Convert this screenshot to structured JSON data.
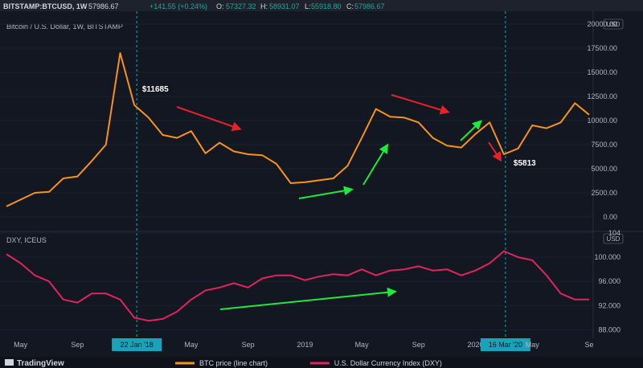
{
  "header": {
    "symbol": "BITSTAMP:BTCUSD, 1W",
    "last": "57986.67",
    "change": "+141.55 (+0.24%)",
    "o_label": "O:",
    "o_value": "57327.32",
    "h_label": "H:",
    "h_value": "58931.07",
    "l_label": "L:",
    "l_value": "55918.80",
    "c_label": "C:",
    "c_value": "57986.67"
  },
  "colors": {
    "background": "#131722",
    "btc_line": "#f7931a",
    "dxy_line": "#e0245e",
    "red_arrow": "#e8202a",
    "green_arrow": "#21e83a",
    "marker_line": "#26c6da",
    "text": "#b2b5be"
  },
  "footer": {
    "logo": "TradingView",
    "legend": [
      {
        "label": "BTC price (line chart)",
        "color": "#f7931a"
      },
      {
        "label": "U.S. Dollar Currency Index (DXY)",
        "color": "#e0245e"
      }
    ]
  },
  "chart_data": [
    {
      "type": "line",
      "title": "Bitcoin / U.S. Dollar, 1W, BITSTAMP",
      "unit_badge": "USD",
      "ylim": [
        -1000,
        20000
      ],
      "y_ticks": [
        "0.00",
        "2500.00",
        "5000.00",
        "7500.00",
        "10000.00",
        "12500.00",
        "15000.00",
        "17500.00",
        "20000.00"
      ],
      "x_ticks": [
        "May",
        "Sep",
        "22 Jan '18",
        "May",
        "Sep",
        "2019",
        "May",
        "Sep",
        "2020",
        "16 Mar '20",
        "May",
        "Se"
      ],
      "x": [
        "2017-04",
        "2017-05",
        "2017-06",
        "2017-07",
        "2017-08",
        "2017-09",
        "2017-10",
        "2017-11",
        "2017-12",
        "2018-01",
        "2018-02",
        "2018-03",
        "2018-04",
        "2018-05",
        "2018-06",
        "2018-07",
        "2018-08",
        "2018-09",
        "2018-10",
        "2018-11",
        "2018-12",
        "2019-01",
        "2019-02",
        "2019-03",
        "2019-04",
        "2019-05",
        "2019-06",
        "2019-07",
        "2019-08",
        "2019-09",
        "2019-10",
        "2019-11",
        "2019-12",
        "2020-01",
        "2020-02",
        "2020-03",
        "2020-04",
        "2020-05",
        "2020-06",
        "2020-07",
        "2020-08",
        "2020-09"
      ],
      "series": [
        {
          "values": [
            1100,
            1800,
            2500,
            2600,
            4000,
            4200,
            5800,
            7500,
            17000,
            11600,
            10300,
            8500,
            8200,
            8900,
            6600,
            7700,
            6800,
            6500,
            6400,
            5500,
            3500,
            3600,
            3800,
            4000,
            5300,
            8200,
            11200,
            10400,
            10300,
            9800,
            8200,
            7400,
            7200,
            8600,
            9800,
            6500,
            7100,
            9500,
            9200,
            9800,
            11800,
            10600
          ]
        }
      ],
      "annotations": [
        {
          "text": "$11685",
          "x": "2018-02",
          "y": 11685
        },
        {
          "text": "$5813",
          "x": "2020-03",
          "y": 5813
        }
      ]
    },
    {
      "type": "line",
      "title": "DXY, ICEUS",
      "unit_badge": "USD",
      "ylim": [
        87,
        104
      ],
      "y_ticks": [
        "88.000",
        "92.000",
        "96.000",
        "100.000",
        "104"
      ],
      "x": [
        "2017-04",
        "2017-05",
        "2017-06",
        "2017-07",
        "2017-08",
        "2017-09",
        "2017-10",
        "2017-11",
        "2017-12",
        "2018-01",
        "2018-02",
        "2018-03",
        "2018-04",
        "2018-05",
        "2018-06",
        "2018-07",
        "2018-08",
        "2018-09",
        "2018-10",
        "2018-11",
        "2018-12",
        "2019-01",
        "2019-02",
        "2019-03",
        "2019-04",
        "2019-05",
        "2019-06",
        "2019-07",
        "2019-08",
        "2019-09",
        "2019-10",
        "2019-11",
        "2019-12",
        "2020-01",
        "2020-02",
        "2020-03",
        "2020-04",
        "2020-05",
        "2020-06",
        "2020-07",
        "2020-08",
        "2020-09"
      ],
      "series": [
        {
          "values": [
            100.5,
            99,
            97,
            96,
            93,
            92.5,
            94,
            94,
            93,
            90,
            89.5,
            89.8,
            91,
            93,
            94.5,
            95,
            95.7,
            95,
            96.5,
            97,
            97,
            96.2,
            96.8,
            97.2,
            97,
            98,
            97,
            97.8,
            98,
            98.5,
            97.8,
            98,
            97,
            97.8,
            99,
            101,
            100,
            99.5,
            97,
            94,
            93,
            93
          ]
        }
      ]
    }
  ]
}
